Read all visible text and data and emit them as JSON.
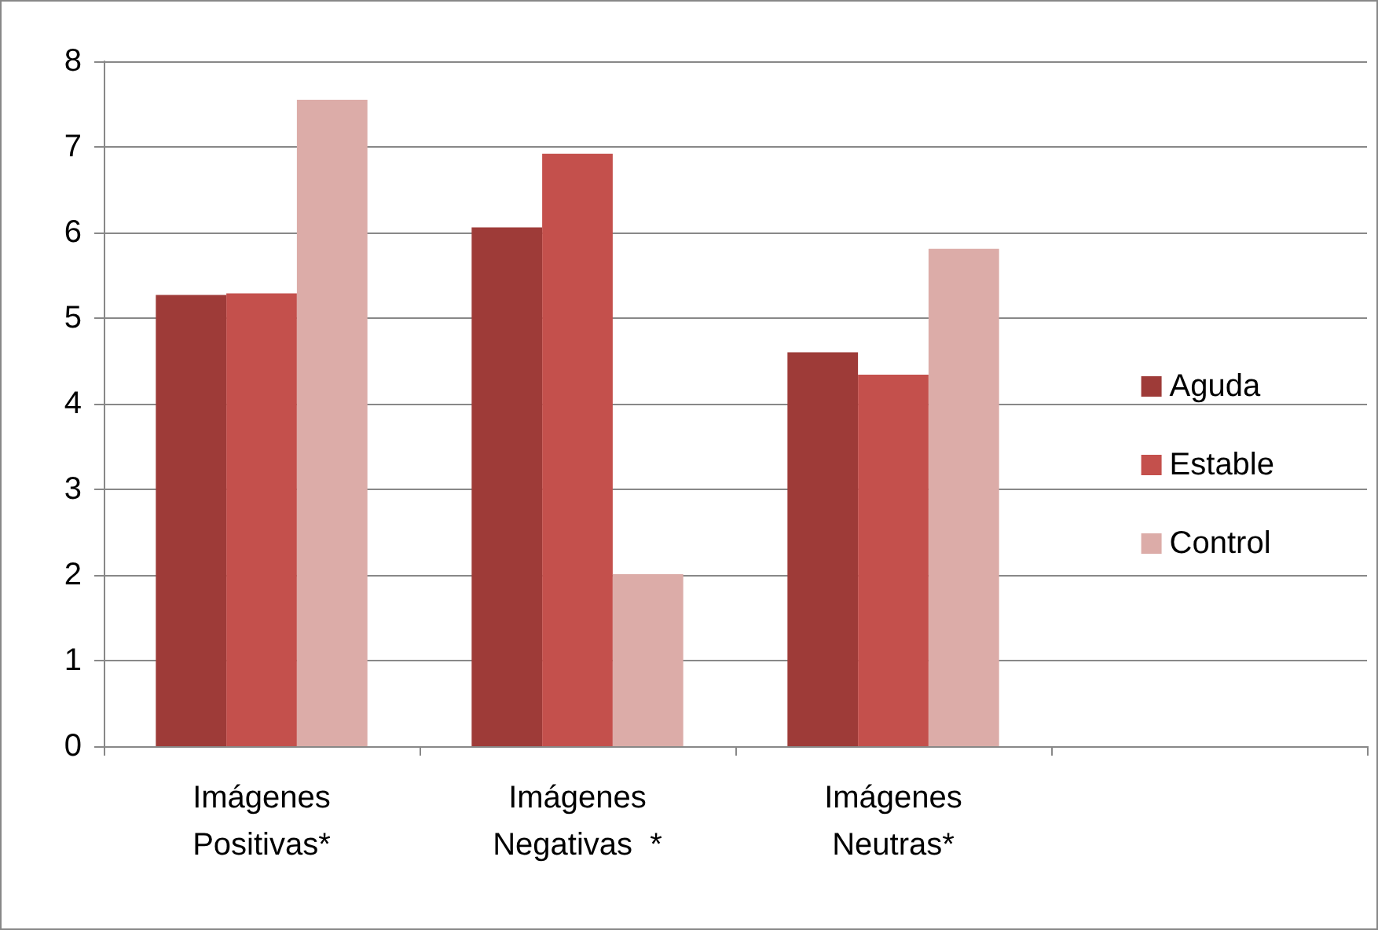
{
  "chart_data": {
    "type": "bar",
    "categories": [
      "Imágenes\nPositivas*",
      "Imágenes\nNegativas  *",
      "Imágenes\nNeutras*",
      null
    ],
    "series": [
      {
        "name": "Aguda",
        "color": "#9e3b38",
        "values": [
          5.27,
          6.06,
          4.6,
          null
        ]
      },
      {
        "name": "Estable",
        "color": "#c4504c",
        "values": [
          5.29,
          6.92,
          4.34,
          null
        ]
      },
      {
        "name": "Control",
        "color": "#dcaca8",
        "values": [
          7.55,
          2.01,
          5.81,
          null
        ]
      }
    ],
    "ylim": [
      0,
      8
    ],
    "yticks": [
      0,
      1,
      2,
      3,
      4,
      5,
      6,
      7,
      8
    ],
    "grid": "y",
    "legend": "right"
  }
}
